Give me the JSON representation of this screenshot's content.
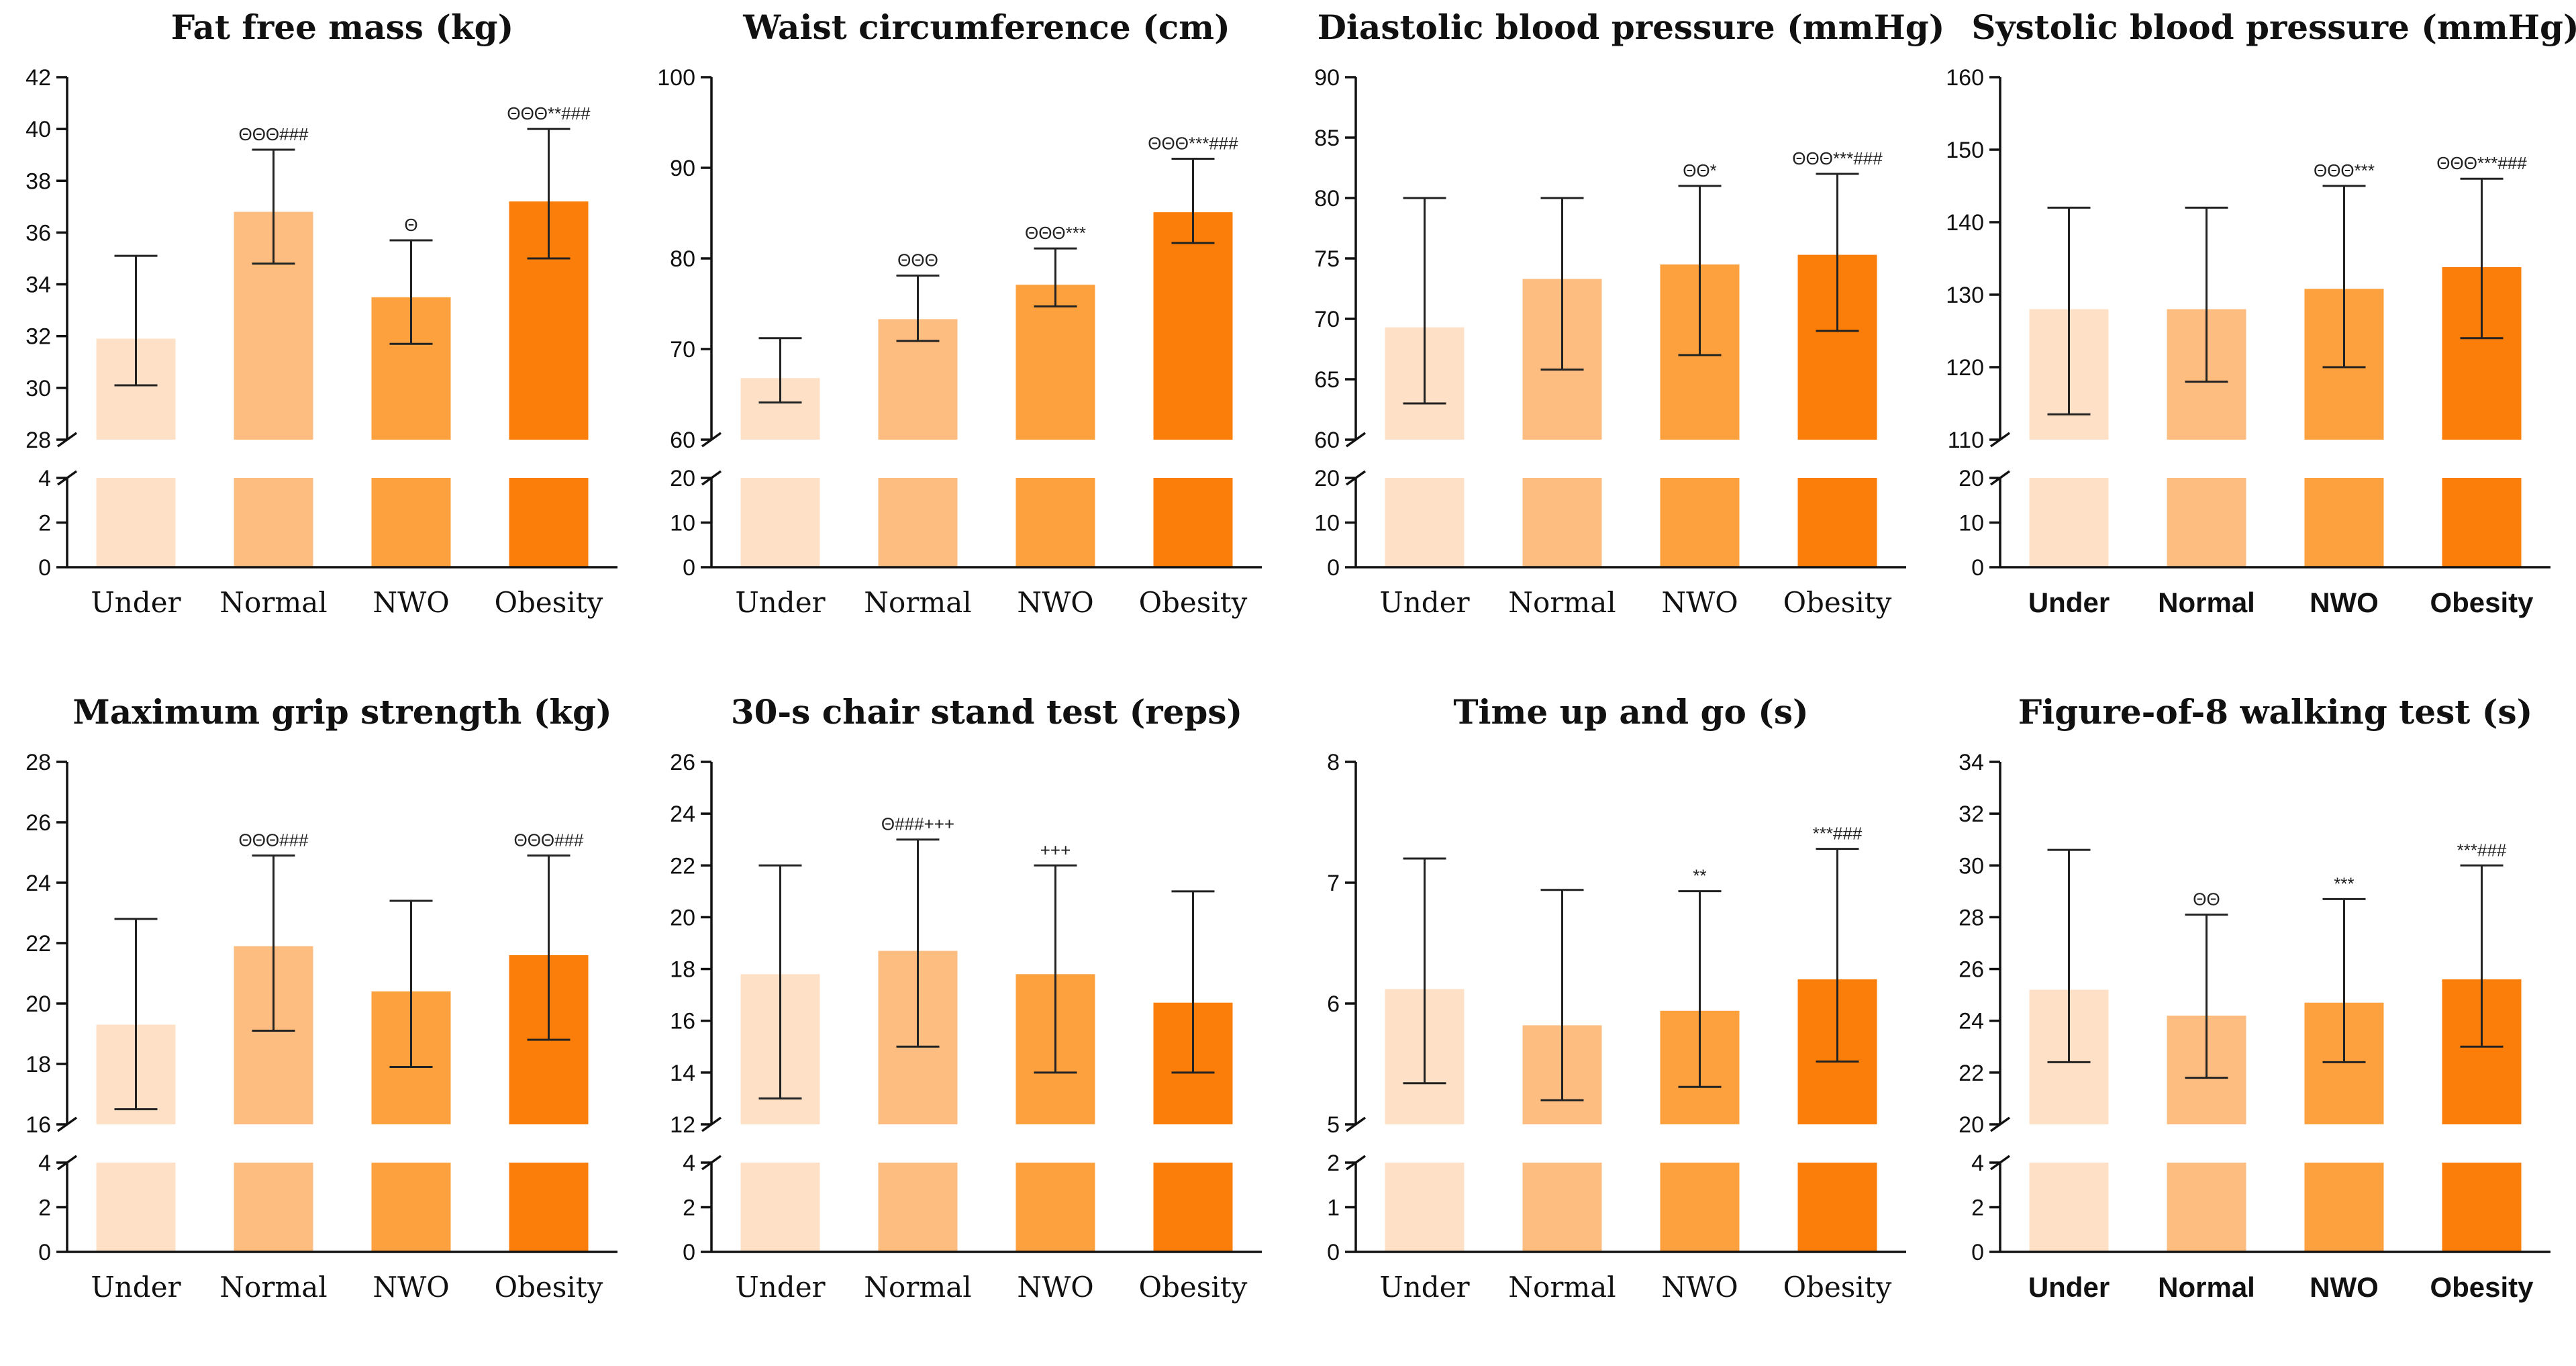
{
  "colors": [
    "#fde0c5",
    "#fdbd80",
    "#fca13d",
    "#fc7e0a"
  ],
  "chart_data": [
    {
      "type": "bar",
      "title": "Fat free mass (kg)",
      "categories": [
        "Under",
        "Normal",
        "NWO",
        "Obesity"
      ],
      "values": [
        31.9,
        36.8,
        33.5,
        37.2
      ],
      "err_low": [
        30.1,
        34.8,
        31.7,
        35.0
      ],
      "err_high": [
        35.1,
        39.2,
        35.7,
        40.0
      ],
      "annotations": [
        "",
        "ΘΘΘ###",
        "Θ",
        "ΘΘΘ**###"
      ],
      "ylim_upper": [
        28,
        42
      ],
      "yticks_upper": [
        28,
        30,
        32,
        34,
        36,
        38,
        40,
        42
      ],
      "ylim_lower": [
        0,
        4
      ],
      "yticks_lower": [
        0,
        2,
        4
      ],
      "category_font": "serif"
    },
    {
      "type": "bar",
      "title": "Waist circumference (cm)",
      "categories": [
        "Under",
        "Normal",
        "NWO",
        "Obesity"
      ],
      "values": [
        66.8,
        73.3,
        77.1,
        85.1
      ],
      "err_low": [
        64.1,
        70.9,
        74.7,
        81.7
      ],
      "err_high": [
        71.2,
        78.1,
        81.1,
        91.0
      ],
      "annotations": [
        "",
        "ΘΘΘ",
        "ΘΘΘ***",
        "ΘΘΘ***###"
      ],
      "ylim_upper": [
        60,
        100
      ],
      "yticks_upper": [
        60,
        70,
        80,
        90,
        100
      ],
      "ylim_lower": [
        0,
        20
      ],
      "yticks_lower": [
        0,
        10,
        20
      ],
      "category_font": "serif"
    },
    {
      "type": "bar",
      "title": "Diastolic blood pressure (mmHg)",
      "categories": [
        "Under",
        "Normal",
        "NWO",
        "Obesity"
      ],
      "values": [
        69.3,
        73.3,
        74.5,
        75.3
      ],
      "err_low": [
        63.0,
        65.8,
        67.0,
        69.0
      ],
      "err_high": [
        80.0,
        80.0,
        81.0,
        82.0
      ],
      "annotations": [
        "",
        "",
        "ΘΘ*",
        "ΘΘΘ***###"
      ],
      "ylim_upper": [
        60,
        90
      ],
      "yticks_upper": [
        60,
        65,
        70,
        75,
        80,
        85,
        90
      ],
      "ylim_lower": [
        0,
        20
      ],
      "yticks_lower": [
        0,
        10,
        20
      ],
      "category_font": "serif"
    },
    {
      "type": "bar",
      "title": "Systolic blood pressure (mmHg)",
      "categories": [
        "Under",
        "Normal",
        "NWO",
        "Obesity"
      ],
      "values": [
        128.0,
        128.0,
        130.8,
        133.8
      ],
      "err_low": [
        113.5,
        118.0,
        120.0,
        124.0
      ],
      "err_high": [
        142.0,
        142.0,
        145.0,
        146.0
      ],
      "annotations": [
        "",
        "",
        "ΘΘΘ***",
        "ΘΘΘ***###"
      ],
      "ylim_upper": [
        110,
        160
      ],
      "yticks_upper": [
        110,
        120,
        130,
        140,
        150,
        160
      ],
      "ylim_lower": [
        0,
        20
      ],
      "yticks_lower": [
        0,
        10,
        20
      ],
      "category_font": "sans"
    },
    {
      "type": "bar",
      "title": "Maximum grip strength (kg)",
      "categories": [
        "Under",
        "Normal",
        "NWO",
        "Obesity"
      ],
      "values": [
        19.3,
        21.9,
        20.4,
        21.6
      ],
      "err_low": [
        16.5,
        19.1,
        17.9,
        18.8
      ],
      "err_high": [
        22.8,
        24.9,
        23.4,
        24.9
      ],
      "annotations": [
        "",
        "ΘΘΘ###",
        "",
        "ΘΘΘ###"
      ],
      "ylim_upper": [
        16,
        28
      ],
      "yticks_upper": [
        16,
        18,
        20,
        22,
        24,
        26,
        28
      ],
      "ylim_lower": [
        0,
        4
      ],
      "yticks_lower": [
        0,
        2,
        4
      ],
      "category_font": "serif"
    },
    {
      "type": "bar",
      "title": "30-s chair stand test (reps)",
      "categories": [
        "Under",
        "Normal",
        "NWO",
        "Obesity"
      ],
      "values": [
        17.8,
        18.7,
        17.8,
        16.7
      ],
      "err_low": [
        13.0,
        15.0,
        14.0,
        14.0
      ],
      "err_high": [
        22.0,
        23.0,
        22.0,
        21.0
      ],
      "annotations": [
        "",
        "Θ###+++",
        "+++",
        ""
      ],
      "ylim_upper": [
        12,
        26
      ],
      "yticks_upper": [
        12,
        14,
        16,
        18,
        20,
        22,
        24,
        26
      ],
      "ylim_lower": [
        0,
        4
      ],
      "yticks_lower": [
        0,
        2,
        4
      ],
      "category_font": "serif"
    },
    {
      "type": "bar",
      "title": "Time up and go (s)",
      "categories": [
        "Under",
        "Normal",
        "NWO",
        "Obesity"
      ],
      "values": [
        6.12,
        5.82,
        5.94,
        6.2
      ],
      "err_low": [
        5.34,
        5.2,
        5.31,
        5.52
      ],
      "err_high": [
        7.2,
        6.94,
        6.93,
        7.28
      ],
      "annotations": [
        "",
        "",
        "**",
        "***###"
      ],
      "ylim_upper": [
        5,
        8
      ],
      "yticks_upper": [
        5,
        6,
        7,
        8
      ],
      "ylim_lower": [
        0,
        2
      ],
      "yticks_lower": [
        0,
        1,
        2
      ],
      "category_font": "serif"
    },
    {
      "type": "bar",
      "title": "Figure-of-8 walking test (s)",
      "categories": [
        "Under",
        "Normal",
        "NWO",
        "Obesity"
      ],
      "values": [
        25.2,
        24.2,
        24.7,
        25.6
      ],
      "err_low": [
        22.4,
        21.8,
        22.4,
        23.0
      ],
      "err_high": [
        30.6,
        28.1,
        28.7,
        30.0
      ],
      "annotations": [
        "",
        "ΘΘ",
        "***",
        "***###"
      ],
      "ylim_upper": [
        20,
        34
      ],
      "yticks_upper": [
        20,
        22,
        24,
        26,
        28,
        30,
        32,
        34
      ],
      "ylim_lower": [
        0,
        4
      ],
      "yticks_lower": [
        0,
        2,
        4
      ],
      "category_font": "sans"
    }
  ]
}
